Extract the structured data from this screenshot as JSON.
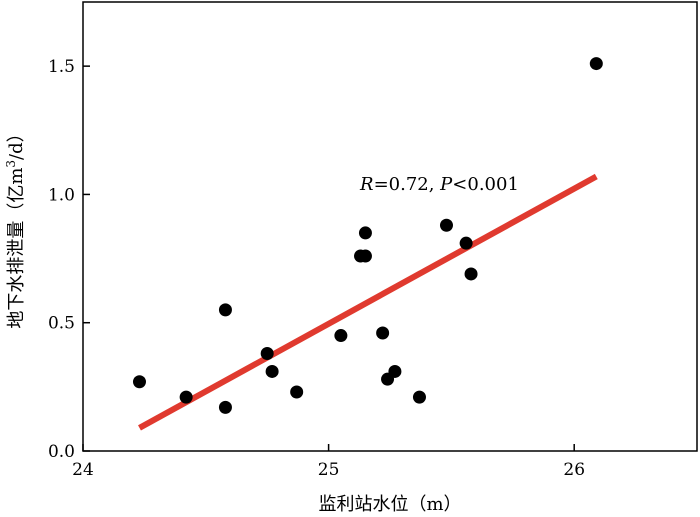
{
  "chart_data": {
    "type": "scatter",
    "title": "",
    "xlabel": "监利站水位（m）",
    "ylabel": "地下水排泄量（亿m³/d）",
    "ylabel_parts": {
      "main": "地下水排泄量（亿m",
      "sup": "3",
      "tail": "/d）"
    },
    "xlim": [
      24,
      26.5
    ],
    "ylim": [
      0,
      1.75
    ],
    "xticks": [
      24,
      25,
      26
    ],
    "yticks": [
      0.0,
      0.5,
      1.0,
      1.5
    ],
    "xtick_labels": [
      "24",
      "25",
      "26"
    ],
    "ytick_labels": [
      "0.0",
      "0.5",
      "1.0",
      "1.5"
    ],
    "grid": false,
    "series": [
      {
        "points": [
          {
            "x": 24.23,
            "y": 0.27
          },
          {
            "x": 24.42,
            "y": 0.21
          },
          {
            "x": 24.58,
            "y": 0.17
          },
          {
            "x": 24.58,
            "y": 0.55
          },
          {
            "x": 24.75,
            "y": 0.38
          },
          {
            "x": 24.77,
            "y": 0.31
          },
          {
            "x": 24.87,
            "y": 0.23
          },
          {
            "x": 25.05,
            "y": 0.45
          },
          {
            "x": 25.13,
            "y": 0.76
          },
          {
            "x": 25.15,
            "y": 0.76
          },
          {
            "x": 25.15,
            "y": 0.85
          },
          {
            "x": 25.22,
            "y": 0.46
          },
          {
            "x": 25.24,
            "y": 0.28
          },
          {
            "x": 25.27,
            "y": 0.31
          },
          {
            "x": 25.37,
            "y": 0.21
          },
          {
            "x": 25.48,
            "y": 0.88
          },
          {
            "x": 25.56,
            "y": 0.81
          },
          {
            "x": 25.58,
            "y": 0.69
          },
          {
            "x": 26.09,
            "y": 1.51
          }
        ]
      }
    ],
    "fit_line": {
      "x": [
        24.23,
        26.09
      ],
      "y": [
        0.09,
        1.07
      ],
      "color": "#e03a2f"
    },
    "annotation": {
      "r_symbol": "R",
      "r_text": "=0.72, ",
      "p_symbol": "P",
      "p_text": "<0.001",
      "x": 25.12,
      "y": 1.02
    },
    "marker_color": "#000000"
  }
}
